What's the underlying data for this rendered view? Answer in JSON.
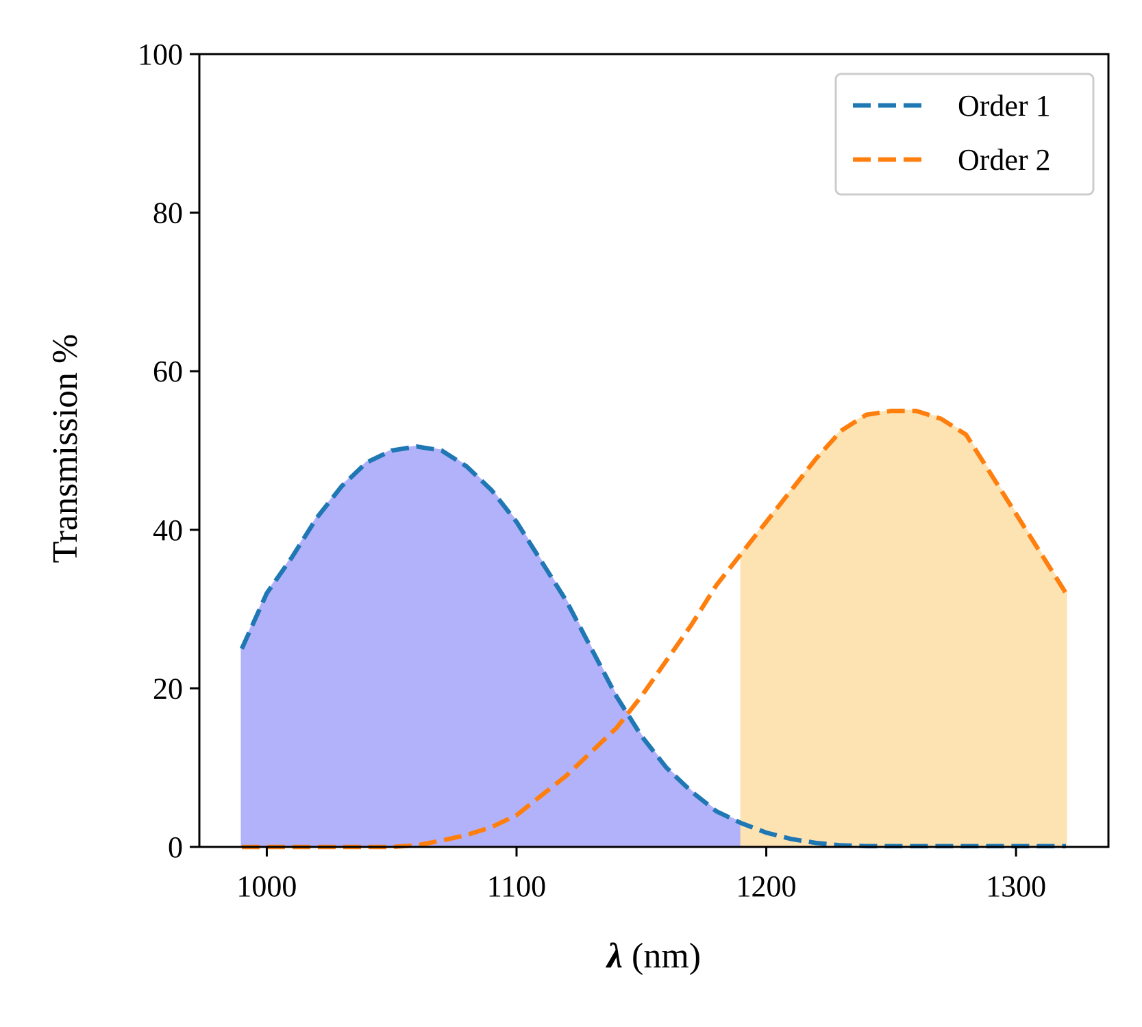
{
  "chart_data": {
    "type": "line",
    "xlabel": "λ (nm)",
    "ylabel": "Transmission %",
    "xlim": [
      973,
      1337
    ],
    "ylim": [
      0,
      100
    ],
    "xticks": [
      1000,
      1100,
      1200,
      1300
    ],
    "yticks": [
      0,
      20,
      40,
      60,
      80,
      100
    ],
    "grid": false,
    "legend_position": "top-right",
    "series": [
      {
        "name": "Order 1",
        "color": "#1f77b4",
        "style": "dashed",
        "x": [
          990,
          1000,
          1010,
          1020,
          1030,
          1040,
          1050,
          1060,
          1070,
          1080,
          1090,
          1100,
          1110,
          1120,
          1130,
          1140,
          1150,
          1160,
          1170,
          1180,
          1190,
          1200,
          1210,
          1220,
          1230,
          1240,
          1250,
          1260,
          1270,
          1280,
          1290,
          1300,
          1310,
          1320
        ],
        "values": [
          25,
          32,
          36.5,
          41.5,
          45.5,
          48.5,
          50,
          50.5,
          50,
          48,
          45,
          41,
          36,
          31,
          25,
          19,
          14,
          10,
          7,
          4.5,
          3,
          1.8,
          1.0,
          0.5,
          0.2,
          0.1,
          0.1,
          0.1,
          0.1,
          0.1,
          0.1,
          0.1,
          0.1,
          0.1
        ]
      },
      {
        "name": "Order 2",
        "color": "#ff7f0e",
        "style": "dashed",
        "x": [
          990,
          1000,
          1010,
          1020,
          1030,
          1040,
          1050,
          1060,
          1070,
          1080,
          1090,
          1100,
          1110,
          1120,
          1130,
          1140,
          1150,
          1160,
          1170,
          1180,
          1190,
          1200,
          1210,
          1220,
          1230,
          1240,
          1250,
          1260,
          1270,
          1280,
          1290,
          1300,
          1310,
          1320
        ],
        "values": [
          0,
          0,
          0,
          0,
          0,
          0,
          0,
          0.2,
          0.8,
          1.5,
          2.5,
          4,
          6.5,
          9,
          12,
          15,
          19,
          23.5,
          28,
          33,
          37,
          41,
          45,
          49,
          52.5,
          54.5,
          55,
          55,
          54,
          52,
          47,
          42,
          37,
          32
        ]
      }
    ],
    "fills": [
      {
        "series": "Order 1",
        "x_range": [
          990,
          1210
        ],
        "color": "#b2b2fb"
      },
      {
        "series": "Order 2",
        "x_range": [
          1190,
          1320
        ],
        "color": "#fde2b2"
      }
    ]
  }
}
